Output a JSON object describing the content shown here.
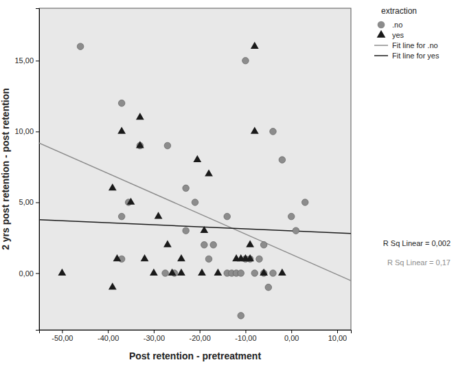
{
  "chart_data": {
    "type": "scatter",
    "x_label": "Post retention - pretreatment",
    "y_label": "2 yrs post retention - post retention",
    "legend_title": "extraction",
    "legend": "right",
    "xlim": [
      -55,
      13
    ],
    "ylim": [
      -4,
      18.7
    ],
    "xticks": [
      {
        "value": -50,
        "label": "-50,00"
      },
      {
        "value": -40,
        "label": "-40,00"
      },
      {
        "value": -30,
        "label": "-30,00"
      },
      {
        "value": -20,
        "label": "-20,00"
      },
      {
        "value": -10,
        "label": "-10,00"
      },
      {
        "value": 0,
        "label": "0,00"
      },
      {
        "value": 10,
        "label": "10,00"
      }
    ],
    "yticks": [
      {
        "value": 0,
        "label": "0,00"
      },
      {
        "value": 5,
        "label": "5,00"
      },
      {
        "value": 10,
        "label": "10,00"
      },
      {
        "value": 15,
        "label": "15,00"
      }
    ],
    "series": [
      {
        "name": ".no",
        "type": "scatter",
        "marker": "circle",
        "color": "#8c8c8c",
        "x": [
          -46,
          -37,
          -35.5,
          -37,
          -37,
          -33,
          -27,
          -23,
          -23,
          -27.5,
          -25.5,
          -21,
          -19,
          -18,
          -17,
          -14,
          -14,
          -13,
          -12,
          -11,
          -11,
          -10,
          -10,
          -9,
          -8,
          -7,
          -6,
          -6,
          -5,
          -4,
          -4,
          -2,
          0,
          1,
          3
        ],
        "values": [
          16,
          12,
          5,
          4,
          1,
          9,
          9,
          6,
          3,
          0,
          0,
          5,
          2,
          1,
          2,
          4,
          0,
          0,
          0,
          0,
          -3,
          15,
          1,
          1,
          0,
          1,
          2,
          0,
          -1,
          10,
          0,
          8,
          4,
          3,
          5
        ]
      },
      {
        "name": "yes",
        "type": "scatter",
        "marker": "triangle",
        "color": "#1a1a1a",
        "x": [
          -50,
          -39,
          -39,
          -38,
          -37,
          -35,
          -33,
          -33,
          -32,
          -29,
          -30,
          -27,
          -26,
          -24,
          -24,
          -20.5,
          -18,
          -19,
          -19.5,
          -16,
          -12,
          -11,
          -8,
          -8,
          -9,
          -10,
          -9,
          -6,
          -2
        ],
        "values": [
          0,
          6,
          -1,
          1,
          10,
          5,
          11,
          9,
          1,
          4,
          0,
          2,
          0,
          1,
          0,
          8,
          7,
          3,
          0,
          0,
          1,
          1,
          16,
          10,
          2,
          1,
          1,
          0,
          0
        ]
      },
      {
        "name": "Fit line for .no",
        "type": "line",
        "line_style": "solid",
        "color": "#8c8c8c",
        "x": [
          -55,
          13
        ],
        "values": [
          9.19,
          -0.53
        ]
      },
      {
        "name": "Fit line for yes",
        "type": "line",
        "line_style": "solid",
        "color": "#1a1a1a",
        "x": [
          -55,
          13
        ],
        "values": [
          3.77,
          2.8
        ]
      }
    ],
    "annotations": [
      {
        "text": "R Sq Linear = 0,002",
        "color": "#1a1a1a"
      },
      {
        "text": "R Sq Linear = 0,17",
        "color": "#8c8c8c"
      }
    ]
  }
}
